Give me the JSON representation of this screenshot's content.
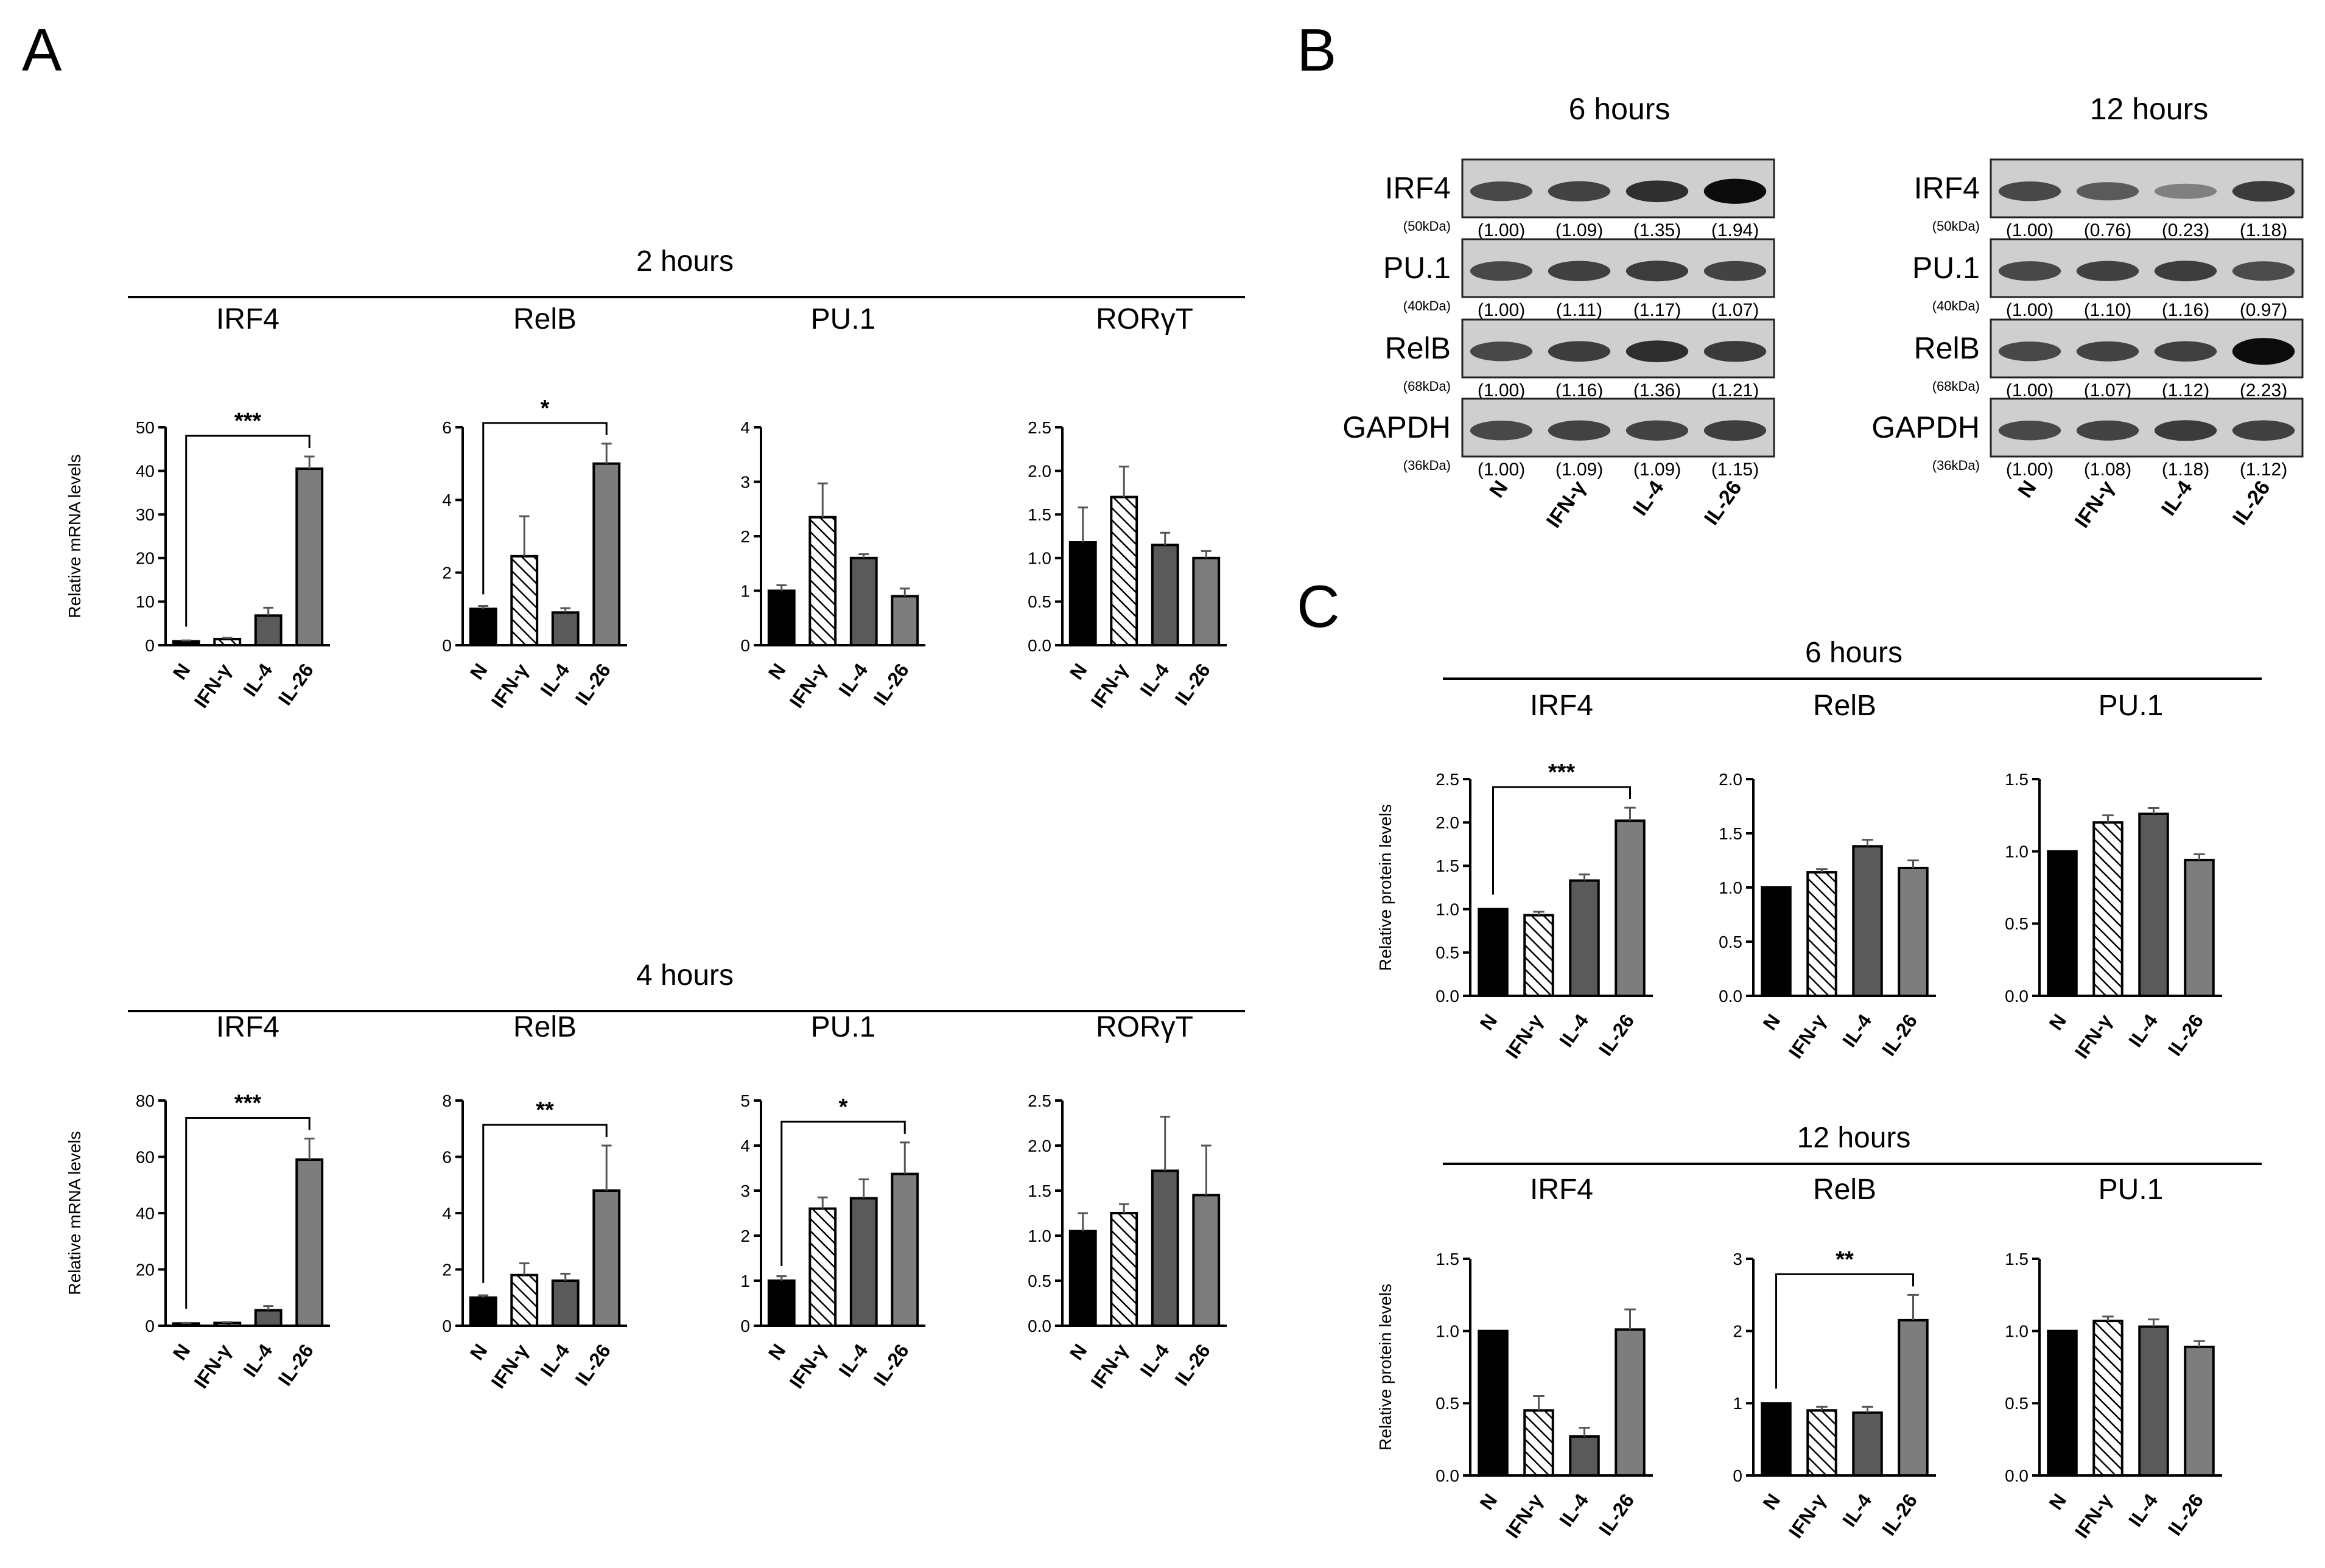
{
  "panels": {
    "a": "A",
    "b": "B",
    "c": "C"
  },
  "categories": [
    "N",
    "IFN-γ",
    "IL-4",
    "IL-26"
  ],
  "colors": {
    "bar_n": "#000000",
    "bar_ifn": "#ffffff",
    "bar_il4": "#5a5a5a",
    "bar_il26": "#7d7d7d",
    "stroke": "#000000",
    "hatch": "#000000"
  },
  "ylabels": {
    "mrna": "Relative mRNA levels",
    "protein": "Relative protein levels"
  },
  "panel_a": {
    "groups": [
      {
        "title": "2 hours",
        "charts": [
          {
            "title": "IRF4",
            "ymax": 50,
            "ticks": [
              0,
              10,
              20,
              30,
              40,
              50
            ],
            "values": [
              0.9,
              1.4,
              6.8,
              40.5
            ],
            "errors": [
              0.2,
              0.3,
              1.8,
              2.8
            ],
            "sig": "***",
            "sig_from": 0,
            "sig_to": 3
          },
          {
            "title": "RelB",
            "ymax": 6,
            "ticks": [
              0,
              2,
              4,
              6
            ],
            "values": [
              1.0,
              2.45,
              0.9,
              5.0
            ],
            "errors": [
              0.08,
              1.1,
              0.12,
              0.55
            ],
            "sig": "*",
            "sig_from": 0,
            "sig_to": 3
          },
          {
            "title": "PU.1",
            "ymax": 4,
            "ticks": [
              0,
              1,
              2,
              3,
              4
            ],
            "values": [
              1.0,
              2.35,
              1.6,
              0.9
            ],
            "errors": [
              0.1,
              0.62,
              0.07,
              0.14
            ],
            "sig": "",
            "sig_from": 0,
            "sig_to": 3
          },
          {
            "title": "RORγT",
            "ymax": 2.5,
            "ticks": [
              "0.0",
              "0.5",
              "1.0",
              "1.5",
              "2.0",
              "2.5"
            ],
            "values": [
              1.18,
              1.7,
              1.15,
              1.0
            ],
            "errors": [
              0.4,
              0.35,
              0.14,
              0.08
            ],
            "sig": "",
            "sig_from": 0,
            "sig_to": 3
          }
        ]
      },
      {
        "title": "4 hours",
        "charts": [
          {
            "title": "IRF4",
            "ymax": 80,
            "ticks": [
              0,
              20,
              40,
              60,
              80
            ],
            "values": [
              0.8,
              1.0,
              5.5,
              59.0
            ],
            "errors": [
              0.2,
              0.3,
              1.5,
              7.5
            ],
            "sig": "***",
            "sig_from": 0,
            "sig_to": 3
          },
          {
            "title": "RelB",
            "ymax": 8,
            "ticks": [
              0,
              2,
              4,
              6,
              8
            ],
            "values": [
              1.0,
              1.8,
              1.6,
              4.8
            ],
            "errors": [
              0.08,
              0.42,
              0.25,
              1.6
            ],
            "sig": "**",
            "sig_from": 0,
            "sig_to": 3
          },
          {
            "title": "PU.1",
            "ymax": 5,
            "ticks": [
              0,
              1,
              2,
              3,
              4,
              5
            ],
            "values": [
              1.0,
              2.6,
              2.83,
              3.37
            ],
            "errors": [
              0.1,
              0.25,
              0.42,
              0.7
            ],
            "sig": "*",
            "sig_from": 0,
            "sig_to": 3
          },
          {
            "title": "RORγT",
            "ymax": 2.5,
            "ticks": [
              "0.0",
              "0.5",
              "1.0",
              "1.5",
              "2.0",
              "2.5"
            ],
            "values": [
              1.05,
              1.25,
              1.72,
              1.45
            ],
            "errors": [
              0.2,
              0.1,
              0.6,
              0.55
            ],
            "sig": "",
            "sig_from": 0,
            "sig_to": 3
          }
        ]
      }
    ]
  },
  "panel_b": {
    "lanes": [
      "N",
      "IFN-γ",
      "IL-4",
      "IL-26"
    ],
    "blocks": [
      {
        "title": "6 hours",
        "rows": [
          {
            "protein": "IRF4",
            "kda": "(50kDa)",
            "quant": [
              "(1.00)",
              "(1.09)",
              "(1.35)",
              "(1.94)"
            ]
          },
          {
            "protein": "PU.1",
            "kda": "(40kDa)",
            "quant": [
              "(1.00)",
              "(1.11)",
              "(1.17)",
              "(1.07)"
            ]
          },
          {
            "protein": "RelB",
            "kda": "(68kDa)",
            "quant": [
              "(1.00)",
              "(1.16)",
              "(1.36)",
              "(1.21)"
            ]
          },
          {
            "protein": "GAPDH",
            "kda": "(36kDa)",
            "quant": [
              "(1.00)",
              "(1.09)",
              "(1.09)",
              "(1.15)"
            ]
          }
        ]
      },
      {
        "title": "12 hours",
        "rows": [
          {
            "protein": "IRF4",
            "kda": "(50kDa)",
            "quant": [
              "(1.00)",
              "(0.76)",
              "(0.23)",
              "(1.18)"
            ]
          },
          {
            "protein": "PU.1",
            "kda": "(40kDa)",
            "quant": [
              "(1.00)",
              "(1.10)",
              "(1.16)",
              "(0.97)"
            ]
          },
          {
            "protein": "RelB",
            "kda": "(68kDa)",
            "quant": [
              "(1.00)",
              "(1.07)",
              "(1.12)",
              "(2.23)"
            ]
          },
          {
            "protein": "GAPDH",
            "kda": "(36kDa)",
            "quant": [
              "(1.00)",
              "(1.08)",
              "(1.18)",
              "(1.12)"
            ]
          }
        ]
      }
    ]
  },
  "panel_c": {
    "groups": [
      {
        "title": "6 hours",
        "charts": [
          {
            "title": "IRF4",
            "ymax": 2.5,
            "ticks": [
              "0.0",
              "0.5",
              "1.0",
              "1.5",
              "2.0",
              "2.5"
            ],
            "values": [
              1.0,
              0.93,
              1.33,
              2.02
            ],
            "errors": [
              0.0,
              0.04,
              0.07,
              0.15
            ],
            "sig": "***",
            "sig_from": 0,
            "sig_to": 3
          },
          {
            "title": "RelB",
            "ymax": 2.0,
            "ticks": [
              "0.0",
              "0.5",
              "1.0",
              "1.5",
              "2.0"
            ],
            "values": [
              1.0,
              1.14,
              1.38,
              1.18
            ],
            "errors": [
              0.0,
              0.03,
              0.06,
              0.07
            ],
            "sig": "",
            "sig_from": 0,
            "sig_to": 3
          },
          {
            "title": "PU.1",
            "ymax": 1.5,
            "ticks": [
              "0.0",
              "0.5",
              "1.0",
              "1.5"
            ],
            "values": [
              1.0,
              1.2,
              1.26,
              0.94
            ],
            "errors": [
              0.0,
              0.05,
              0.04,
              0.04
            ],
            "sig": "",
            "sig_from": 0,
            "sig_to": 3
          }
        ]
      },
      {
        "title": "12 hours",
        "charts": [
          {
            "title": "IRF4",
            "ymax": 1.5,
            "ticks": [
              "0.0",
              "0.5",
              "1.0",
              "1.5"
            ],
            "values": [
              1.0,
              0.45,
              0.27,
              1.01
            ],
            "errors": [
              0.0,
              0.1,
              0.06,
              0.14
            ],
            "sig": "",
            "sig_from": 0,
            "sig_to": 3
          },
          {
            "title": "RelB",
            "ymax": 3,
            "ticks": [
              0,
              1,
              2,
              3
            ],
            "values": [
              1.0,
              0.9,
              0.87,
              2.15
            ],
            "errors": [
              0.0,
              0.05,
              0.08,
              0.35
            ],
            "sig": "**",
            "sig_from": 0,
            "sig_to": 3
          },
          {
            "title": "PU.1",
            "ymax": 1.5,
            "ticks": [
              "0.0",
              "0.5",
              "1.0",
              "1.5"
            ],
            "values": [
              1.0,
              1.07,
              1.03,
              0.89
            ],
            "errors": [
              0.0,
              0.03,
              0.05,
              0.04
            ],
            "sig": "",
            "sig_from": 0,
            "sig_to": 3
          }
        ]
      }
    ]
  },
  "chart_data": [
    {
      "type": "bar",
      "title": "2 hours IRF4",
      "categories": [
        "N",
        "IFN-γ",
        "IL-4",
        "IL-26"
      ],
      "values": [
        0.9,
        1.4,
        6.8,
        40.5
      ],
      "errors": [
        0.2,
        0.3,
        1.8,
        2.8
      ],
      "ylabel": "Relative mRNA levels",
      "ylim": [
        0,
        50
      ],
      "annotation": "***"
    },
    {
      "type": "bar",
      "title": "2 hours RelB",
      "categories": [
        "N",
        "IFN-γ",
        "IL-4",
        "IL-26"
      ],
      "values": [
        1.0,
        2.45,
        0.9,
        5.0
      ],
      "errors": [
        0.08,
        1.1,
        0.12,
        0.55
      ],
      "ylim": [
        0,
        6
      ],
      "annotation": "*"
    },
    {
      "type": "bar",
      "title": "2 hours PU.1",
      "categories": [
        "N",
        "IFN-γ",
        "IL-4",
        "IL-26"
      ],
      "values": [
        1.0,
        2.35,
        1.6,
        0.9
      ],
      "errors": [
        0.1,
        0.62,
        0.07,
        0.14
      ],
      "ylim": [
        0,
        4
      ]
    },
    {
      "type": "bar",
      "title": "2 hours RORγT",
      "categories": [
        "N",
        "IFN-γ",
        "IL-4",
        "IL-26"
      ],
      "values": [
        1.18,
        1.7,
        1.15,
        1.0
      ],
      "errors": [
        0.4,
        0.35,
        0.14,
        0.08
      ],
      "ylim": [
        0,
        2.5
      ]
    },
    {
      "type": "bar",
      "title": "4 hours IRF4",
      "categories": [
        "N",
        "IFN-γ",
        "IL-4",
        "IL-26"
      ],
      "values": [
        0.8,
        1.0,
        5.5,
        59.0
      ],
      "errors": [
        0.2,
        0.3,
        1.5,
        7.5
      ],
      "ylabel": "Relative mRNA levels",
      "ylim": [
        0,
        80
      ],
      "annotation": "***"
    },
    {
      "type": "bar",
      "title": "4 hours RelB",
      "categories": [
        "N",
        "IFN-γ",
        "IL-4",
        "IL-26"
      ],
      "values": [
        1.0,
        1.8,
        1.6,
        4.8
      ],
      "errors": [
        0.08,
        0.42,
        0.25,
        1.6
      ],
      "ylim": [
        0,
        8
      ],
      "annotation": "**"
    },
    {
      "type": "bar",
      "title": "4 hours PU.1",
      "categories": [
        "N",
        "IFN-γ",
        "IL-4",
        "IL-26"
      ],
      "values": [
        1.0,
        2.6,
        2.83,
        3.37
      ],
      "errors": [
        0.1,
        0.25,
        0.42,
        0.7
      ],
      "ylim": [
        0,
        5
      ],
      "annotation": "*"
    },
    {
      "type": "bar",
      "title": "4 hours RORγT",
      "categories": [
        "N",
        "IFN-γ",
        "IL-4",
        "IL-26"
      ],
      "values": [
        1.05,
        1.25,
        1.72,
        1.45
      ],
      "errors": [
        0.2,
        0.1,
        0.6,
        0.55
      ],
      "ylim": [
        0,
        2.5
      ]
    },
    {
      "type": "bar",
      "title": "6 hours IRF4 protein",
      "categories": [
        "N",
        "IFN-γ",
        "IL-4",
        "IL-26"
      ],
      "values": [
        1.0,
        0.93,
        1.33,
        2.02
      ],
      "errors": [
        0.0,
        0.04,
        0.07,
        0.15
      ],
      "ylabel": "Relative protein levels",
      "ylim": [
        0,
        2.5
      ],
      "annotation": "***"
    },
    {
      "type": "bar",
      "title": "6 hours RelB protein",
      "categories": [
        "N",
        "IFN-γ",
        "IL-4",
        "IL-26"
      ],
      "values": [
        1.0,
        1.14,
        1.38,
        1.18
      ],
      "errors": [
        0.0,
        0.03,
        0.06,
        0.07
      ],
      "ylim": [
        0,
        2.0
      ]
    },
    {
      "type": "bar",
      "title": "6 hours PU.1 protein",
      "categories": [
        "N",
        "IFN-γ",
        "IL-4",
        "IL-26"
      ],
      "values": [
        1.0,
        1.2,
        1.26,
        0.94
      ],
      "errors": [
        0.0,
        0.05,
        0.04,
        0.04
      ],
      "ylim": [
        0,
        1.5
      ]
    },
    {
      "type": "bar",
      "title": "12 hours IRF4 protein",
      "categories": [
        "N",
        "IFN-γ",
        "IL-4",
        "IL-26"
      ],
      "values": [
        1.0,
        0.45,
        0.27,
        1.01
      ],
      "errors": [
        0.0,
        0.1,
        0.06,
        0.14
      ],
      "ylabel": "Relative protein levels",
      "ylim": [
        0,
        1.5
      ]
    },
    {
      "type": "bar",
      "title": "12 hours RelB protein",
      "categories": [
        "N",
        "IFN-γ",
        "IL-4",
        "IL-26"
      ],
      "values": [
        1.0,
        0.9,
        0.87,
        2.15
      ],
      "errors": [
        0.0,
        0.05,
        0.08,
        0.35
      ],
      "ylim": [
        0,
        3
      ],
      "annotation": "**"
    },
    {
      "type": "bar",
      "title": "12 hours PU.1 protein",
      "categories": [
        "N",
        "IFN-γ",
        "IL-4",
        "IL-26"
      ],
      "values": [
        1.0,
        1.07,
        1.03,
        0.89
      ],
      "errors": [
        0.0,
        0.03,
        0.05,
        0.04
      ],
      "ylim": [
        0,
        1.5
      ]
    }
  ]
}
